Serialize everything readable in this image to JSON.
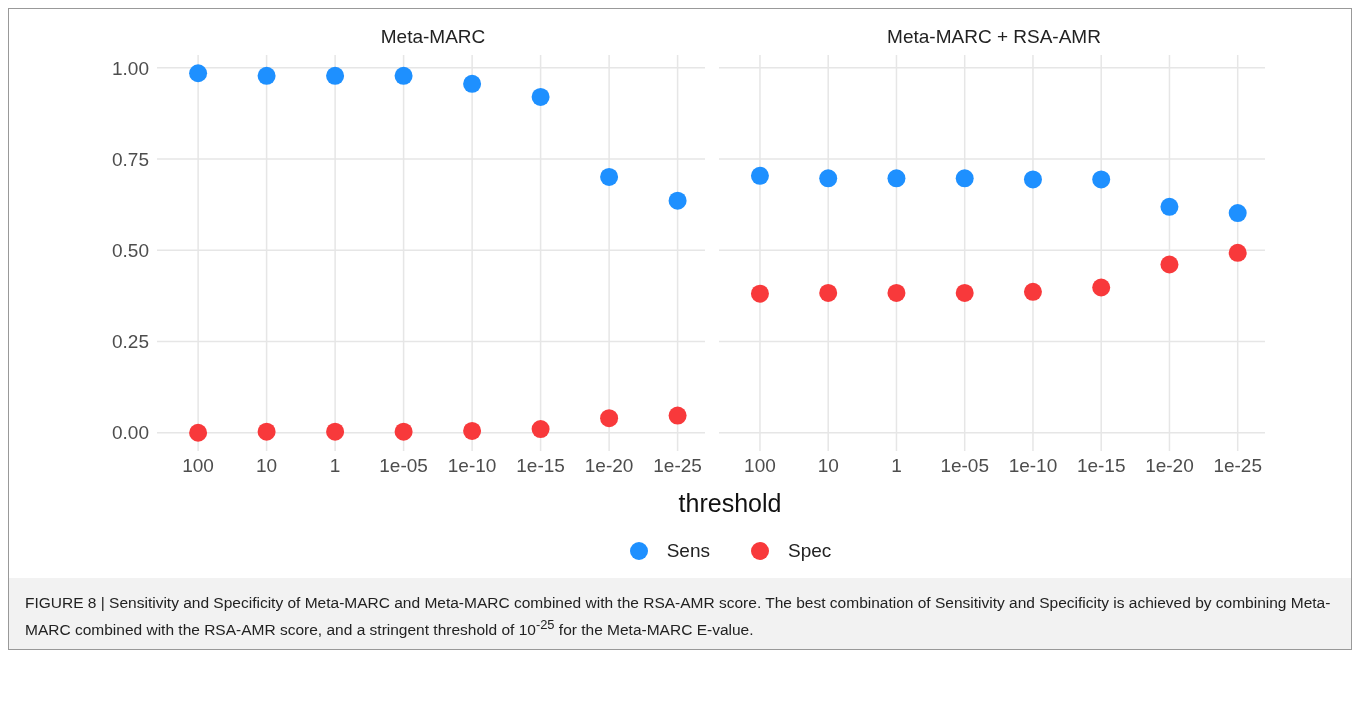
{
  "chart_data": [
    {
      "type": "scatter",
      "title": "Meta-MARC",
      "xlabel": "threshold",
      "categories": [
        "100",
        "10",
        "1",
        "1e-05",
        "1e-10",
        "1e-15",
        "1e-20",
        "1e-25"
      ],
      "series": [
        {
          "name": "Sens",
          "color": "#1e90ff",
          "values": [
            0.985,
            0.978,
            0.978,
            0.978,
            0.956,
            0.92,
            0.701,
            0.636
          ]
        },
        {
          "name": "Spec",
          "color": "#f8393b",
          "values": [
            0.0,
            0.003,
            0.003,
            0.003,
            0.005,
            0.01,
            0.04,
            0.047
          ]
        }
      ],
      "ylim": [
        -0.05,
        1.035
      ],
      "yticks": [
        {
          "value": 0,
          "label": "0.00"
        },
        {
          "value": 0.25,
          "label": "0.25"
        },
        {
          "value": 0.5,
          "label": "0.50"
        },
        {
          "value": 0.75,
          "label": "0.75"
        },
        {
          "value": 1,
          "label": "1.00"
        }
      ],
      "grid": true,
      "marker": "circle",
      "legend": "bottom",
      "annotations": [
        "FIGURE 8 | Sensitivity and Specificity of Meta-MARC and Meta-MARC combined with the RSA-AMR score. The best combination of Sensitivity and Specificity is achieved by combining Meta-MARC combined with the RSA-AMR score, and a stringent threshold of 10$^{-25}$ for the Meta-MARC E-value."
      ]
    },
    {
      "type": "scatter",
      "title": "Meta-MARC + RSA-AMR",
      "categories": [
        "100",
        "10",
        "1",
        "1e-05",
        "1e-10",
        "1e-15",
        "1e-20",
        "1e-25"
      ],
      "series": [
        {
          "color": "#1e90ff",
          "values": [
            0.704,
            0.697,
            0.697,
            0.697,
            0.694,
            0.694,
            0.619,
            0.602
          ]
        },
        {
          "color": "#f8393b",
          "values": [
            0.381,
            0.383,
            0.383,
            0.383,
            0.386,
            0.398,
            0.461,
            0.493
          ]
        }
      ],
      "ylim": [
        -0.05,
        1.035
      ],
      "yticks": [
        0,
        0.25,
        0.5,
        0.75,
        1
      ],
      "grid": true,
      "marker": "circle",
      "tick_labels": "x"
    }
  ]
}
